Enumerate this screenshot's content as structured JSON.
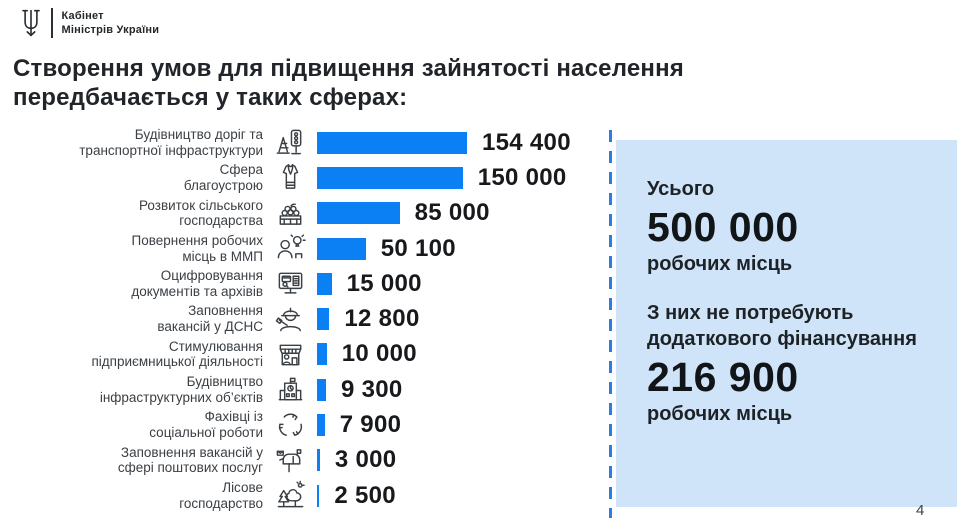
{
  "header": {
    "org_line1": "Кабінет",
    "org_line2": "Міністрів України"
  },
  "title": "Створення умов для підвищення зайнятості населення\nпередбачається у таких сферах:",
  "chart_data": {
    "type": "bar",
    "orientation": "horizontal",
    "categories": [
      "Будівництво доріг та\nтранспортної інфраструктури",
      "Сфера\nблагоустрою",
      "Розвиток сільського\nгосподарства",
      "Повернення робочих\nмісць в ММП",
      "Оцифровування\nдокументів та архівів",
      "Заповнення\nвакансій у ДСНС",
      "Стимулювання\nпідприємницької діяльності",
      "Будівництво\nінфраструктурних об’єктів",
      "Фахівці із\nсоціальної роботи",
      "Заповнення вакансій у\nсфері поштових послуг",
      "Лісове\nгосподарство"
    ],
    "values": [
      154400,
      150000,
      85000,
      50100,
      15000,
      12800,
      10000,
      9300,
      7900,
      3000,
      2500
    ],
    "value_labels": [
      "154 400",
      "150 000",
      "85 000",
      "50 100",
      "15 000",
      "12 800",
      "10 000",
      "9 300",
      "7 900",
      "3 000",
      "2 500"
    ],
    "icons": [
      "road-transport-infrastructure-icon",
      "public-amenities-vest-icon",
      "agriculture-crate-icon",
      "jobs-return-person-idea-icon",
      "digitization-monitor-icon",
      "rescue-service-firefighter-icon",
      "entrepreneurship-storefront-icon",
      "infrastructure-building-icon",
      "social-work-hands-icon",
      "postal-mailbox-icon",
      "forestry-trees-icon"
    ],
    "title": "Створення умов для підвищення зайнятості населення передбачається у таких сферах:",
    "xlabel": "",
    "ylabel": "",
    "xlim": [
      0,
      154400
    ],
    "grid": false,
    "legend": false,
    "bar_color": "#0b80f5"
  },
  "summary": {
    "total": {
      "label": "Усього",
      "value": "500 000",
      "unit": "робочих місць"
    },
    "no_additional_financing": {
      "label": "З них не потребують\nдодаткового фінансування",
      "value": "216 900",
      "unit": "робочих місць"
    }
  },
  "page_number": "4",
  "colors": {
    "bar": "#0b80f5",
    "panel_background": "#cfe4f8",
    "dashed_divider": "#2a7de1"
  }
}
